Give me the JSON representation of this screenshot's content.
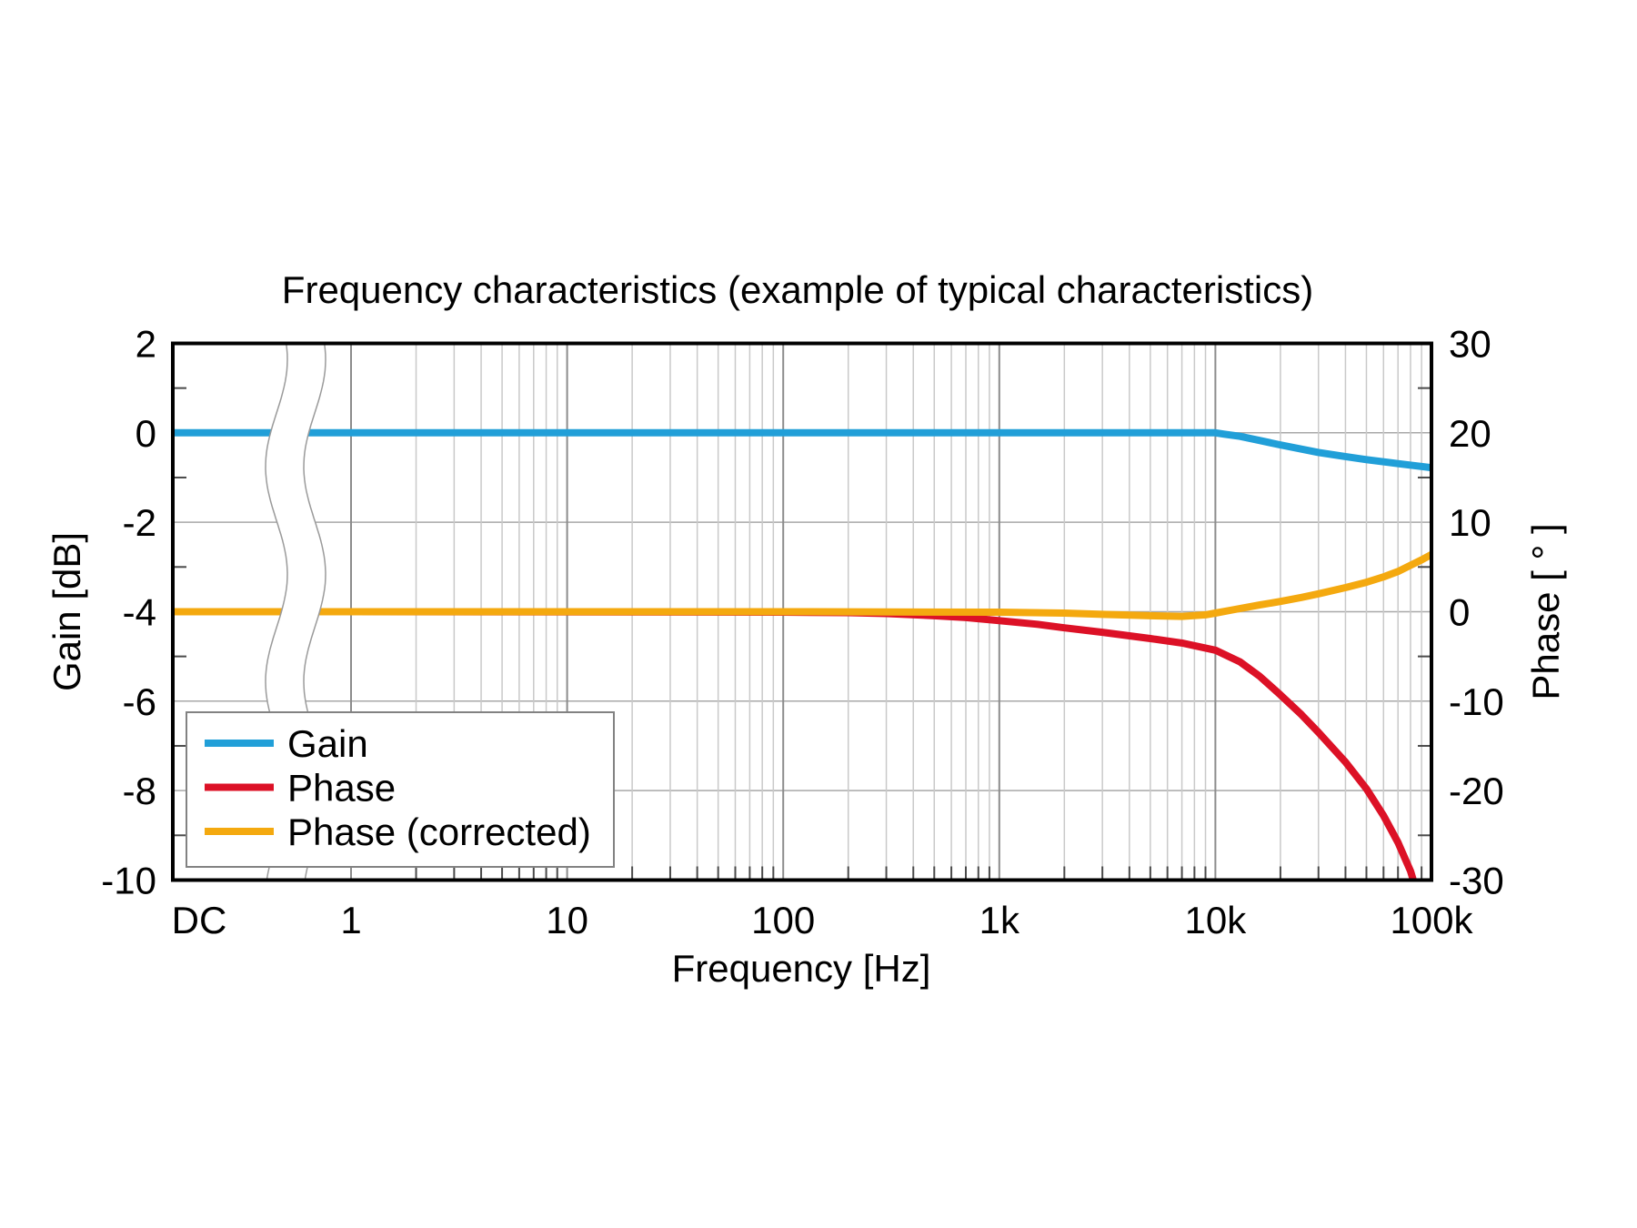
{
  "chart_data": {
    "type": "line",
    "title": "Frequency characteristics (example of typical characteristics)",
    "xlabel": "Frequency [Hz]",
    "ylabel_left": "Gain [dB]",
    "ylabel_right": "Phase [ ° ]",
    "x_axis": {
      "scale": "log",
      "break_between": [
        "DC",
        "1"
      ],
      "ticks": [
        {
          "f": "DC",
          "label": "DC"
        },
        {
          "f": 1,
          "label": "1"
        },
        {
          "f": 10,
          "label": "10"
        },
        {
          "f": 100,
          "label": "100"
        },
        {
          "f": 1000,
          "label": "1k"
        },
        {
          "f": 10000,
          "label": "10k"
        },
        {
          "f": 100000,
          "label": "100k"
        }
      ]
    },
    "y_left": {
      "min": -10,
      "max": 2,
      "unit": "dB",
      "ticks": [
        2,
        0,
        -2,
        -4,
        -6,
        -8,
        -10
      ]
    },
    "y_right": {
      "min": -30,
      "max": 30,
      "unit": "deg",
      "ticks": [
        30,
        20,
        10,
        0,
        -10,
        -20,
        -30
      ]
    },
    "grid": "on",
    "legend_position": "lower-left",
    "colors": {
      "gain": "#219FD8",
      "phase": "#DC1126",
      "phase_corrected": "#F4A90F",
      "grid_major": "#8C8C8C",
      "grid_minor": "#C9C9C9",
      "grid_horizontal": "#A8A8A8",
      "axis_box": "#000000",
      "break_line": "#9A9A9A",
      "legend_border": "#828282"
    },
    "series": [
      {
        "name": "Gain",
        "axis": "left",
        "color": "#219FD8",
        "points": [
          [
            "DC",
            0
          ],
          [
            1,
            0
          ],
          [
            100,
            0
          ],
          [
            1000,
            0
          ],
          [
            8000,
            0
          ],
          [
            10000,
            0
          ],
          [
            11000,
            -0.03
          ],
          [
            13000,
            -0.08
          ],
          [
            16000,
            -0.17
          ],
          [
            20000,
            -0.27
          ],
          [
            30000,
            -0.44
          ],
          [
            40000,
            -0.53
          ],
          [
            50000,
            -0.6
          ],
          [
            70000,
            -0.69
          ],
          [
            100000,
            -0.78
          ]
        ]
      },
      {
        "name": "Phase",
        "axis": "right",
        "color": "#DC1126",
        "points": [
          [
            "DC",
            0
          ],
          [
            1,
            0
          ],
          [
            100,
            -0.05
          ],
          [
            200,
            -0.1
          ],
          [
            300,
            -0.2
          ],
          [
            500,
            -0.45
          ],
          [
            700,
            -0.65
          ],
          [
            1000,
            -1.0
          ],
          [
            1500,
            -1.4
          ],
          [
            2000,
            -1.8
          ],
          [
            3000,
            -2.3
          ],
          [
            5000,
            -3.0
          ],
          [
            7000,
            -3.5
          ],
          [
            10000,
            -4.3
          ],
          [
            13000,
            -5.6
          ],
          [
            16000,
            -7.2
          ],
          [
            20000,
            -9.3
          ],
          [
            25000,
            -11.5
          ],
          [
            30000,
            -13.5
          ],
          [
            40000,
            -16.8
          ],
          [
            50000,
            -19.8
          ],
          [
            60000,
            -22.8
          ],
          [
            70000,
            -25.8
          ],
          [
            80000,
            -29.0
          ],
          [
            86000,
            -31.5
          ]
        ]
      },
      {
        "name": "Phase (corrected)",
        "axis": "right",
        "color": "#F4A90F",
        "points": [
          [
            "DC",
            0
          ],
          [
            1,
            0
          ],
          [
            100,
            0
          ],
          [
            1000,
            -0.05
          ],
          [
            2000,
            -0.15
          ],
          [
            3000,
            -0.3
          ],
          [
            5000,
            -0.45
          ],
          [
            7000,
            -0.52
          ],
          [
            9000,
            -0.35
          ],
          [
            10000,
            -0.15
          ],
          [
            12000,
            0.2
          ],
          [
            16000,
            0.75
          ],
          [
            20000,
            1.15
          ],
          [
            25000,
            1.6
          ],
          [
            30000,
            2.0
          ],
          [
            40000,
            2.7
          ],
          [
            50000,
            3.3
          ],
          [
            60000,
            3.9
          ],
          [
            70000,
            4.5
          ],
          [
            80000,
            5.2
          ],
          [
            90000,
            5.8
          ],
          [
            100000,
            6.4
          ]
        ]
      }
    ]
  }
}
